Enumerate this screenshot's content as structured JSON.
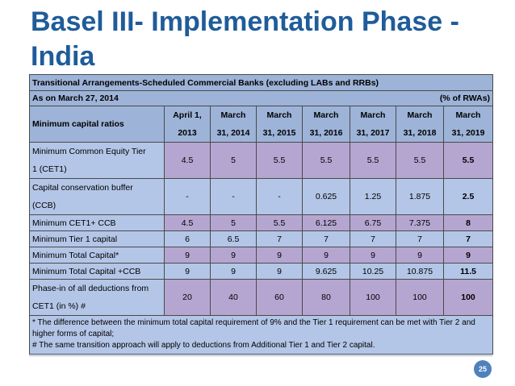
{
  "title": "Basel III- Implementation Phase - India",
  "table": {
    "caption": "Transitional Arrangements-Scheduled Commercial Banks (excluding LABs and RRBs)",
    "as_on": "As on March 27, 2014",
    "unit": "(% of RWAs)",
    "row_header": "Minimum capital ratios",
    "columns": [
      {
        "line1": "April 1,",
        "line2": "2013"
      },
      {
        "line1": "March",
        "line2": "31, 2014"
      },
      {
        "line1": "March",
        "line2": "31, 2015"
      },
      {
        "line1": "March",
        "line2": "31, 2016"
      },
      {
        "line1": "March",
        "line2": "31, 2017"
      },
      {
        "line1": "March",
        "line2": "31, 2018"
      },
      {
        "line1": "March",
        "line2": "31, 2019"
      }
    ],
    "rows": [
      {
        "line1": "Minimum Common Equity Tier",
        "line2": "1 (CET1)",
        "values": [
          "4.5",
          "5",
          "5.5",
          "5.5",
          "5.5",
          "5.5",
          "5.5"
        ]
      },
      {
        "line1": "Capital conservation buffer",
        "line2": "(CCB)",
        "values": [
          "-",
          "-",
          "-",
          "0.625",
          "1.25",
          "1.875",
          "2.5"
        ]
      },
      {
        "line1": "Minimum CET1+ CCB",
        "line2": "",
        "values": [
          "4.5",
          "5",
          "5.5",
          "6.125",
          "6.75",
          "7.375",
          "8"
        ]
      },
      {
        "line1": "Minimum Tier 1 capital",
        "line2": "",
        "values": [
          "6",
          "6.5",
          "7",
          "7",
          "7",
          "7",
          "7"
        ]
      },
      {
        "line1": "Minimum Total Capital*",
        "line2": "",
        "values": [
          "9",
          "9",
          "9",
          "9",
          "9",
          "9",
          "9"
        ]
      },
      {
        "line1": "Minimum Total Capital +CCB",
        "line2": "",
        "values": [
          "9",
          "9",
          "9",
          "9.625",
          "10.25",
          "10.875",
          "11.5"
        ]
      },
      {
        "line1": "Phase-in of all deductions from",
        "line2": "CET1 (in %) #",
        "values": [
          "20",
          "40",
          "60",
          "80",
          "100",
          "100",
          "100"
        ]
      }
    ],
    "footnote1": "* The difference between the minimum total capital requirement of 9% and the Tier 1 requirement can be met with Tier 2 and higher forms of capital;",
    "footnote2": "# The same transition approach will apply to deductions from Additional Tier 1 and Tier 2 capital."
  },
  "page_number": "25",
  "colors": {
    "title": "#1F5C99",
    "header": "#9DB3D8",
    "cell_blue": "#B4C6E7",
    "cell_purple": "#B5A6D1",
    "page_badge": "#4F81BD"
  }
}
